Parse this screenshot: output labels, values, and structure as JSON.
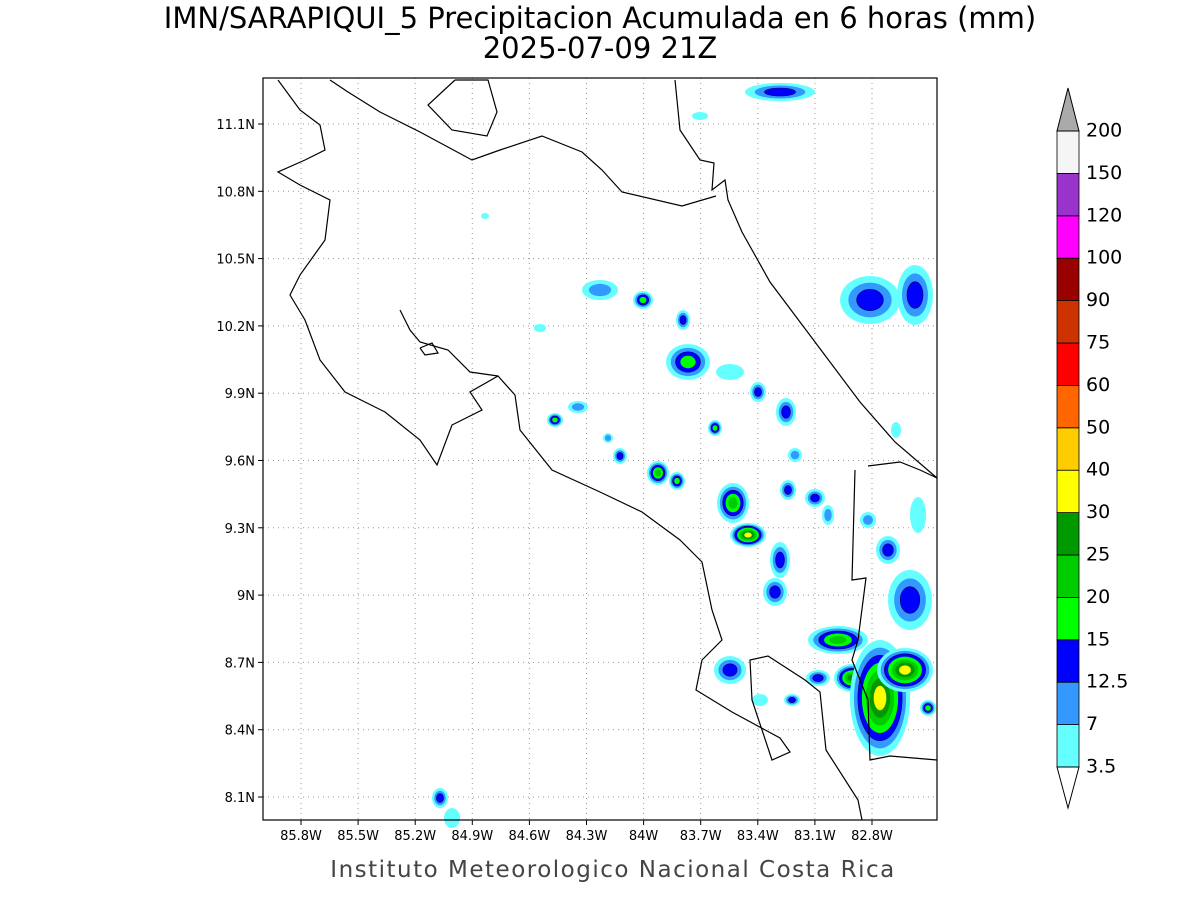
{
  "title": "IMN/SARAPIQUI_5 Precipitacion Acumulada en 6 horas (mm)",
  "subtitle": "2025-07-09 21Z",
  "lon_ticks": [
    "85.8W",
    "85.5W",
    "85.2W",
    "84.9W",
    "84.6W",
    "84.3W",
    "84W",
    "83.7W",
    "83.4W",
    "83.1W",
    "82.8W"
  ],
  "lat_ticks": [
    "11.1N",
    "10.8N",
    "10.5N",
    "10.2N",
    "9.9N",
    "9.6N",
    "9.3N",
    "9N",
    "8.7N",
    "8.4N",
    "8.1N"
  ],
  "colorbar": {
    "levels": [
      3.5,
      7,
      12.5,
      15,
      20,
      25,
      30,
      40,
      50,
      60,
      75,
      90,
      100,
      120,
      150,
      200
    ],
    "colors": [
      "#66ffff",
      "#3399ff",
      "#0000ff",
      "#00ff00",
      "#00cc00",
      "#009900",
      "#ffff00",
      "#ffcc00",
      "#ff6600",
      "#ff0000",
      "#cc3300",
      "#990000",
      "#ff00ff",
      "#9933cc",
      "#f5f5f5"
    ],
    "over_color": "#aaaaaa",
    "under_color": "#ffffff"
  },
  "footer": "Instituto Meteorologico Nacional Costa Rica"
}
